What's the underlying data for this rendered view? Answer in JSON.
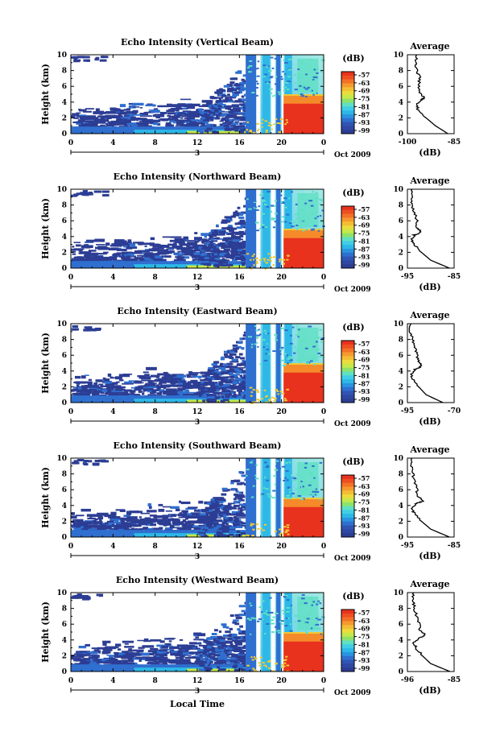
{
  "chart_data": {
    "type": "heatmap",
    "shared": {
      "xlabel": "Local Time",
      "ylabel": "Height (km)",
      "xticks": [
        "0",
        "4",
        "8",
        "12",
        "16",
        "20",
        "0"
      ],
      "xlim": [
        0,
        24
      ],
      "date_marker": "3",
      "date_label": "Oct 2009",
      "yticks": [
        "0",
        "2",
        "4",
        "6",
        "8",
        "10"
      ],
      "ylim": [
        0,
        10
      ],
      "colorbar_unit": "(dB)",
      "colorbar_ticks": [
        "-57",
        "-63",
        "-69",
        "-75",
        "-81",
        "-87",
        "-93",
        "-99"
      ],
      "colorbar_colors": [
        "#e8321e",
        "#f58a2a",
        "#f2c934",
        "#c6e84a",
        "#5fe0c3",
        "#2db8e8",
        "#2f6fcf",
        "#2c3d94"
      ],
      "profile_title": "Average",
      "profile_xlabel": "(dB)"
    },
    "panels": [
      {
        "title": "Echo Intensity (Vertical Beam)",
        "profile_xticks": [
          "-100",
          "-85"
        ],
        "profile_xlim": [
          -100,
          -85
        ],
        "profile": [
          [
            0,
            -87
          ],
          [
            1,
            -91
          ],
          [
            2,
            -94
          ],
          [
            3,
            -96.5
          ],
          [
            3.6,
            -97
          ],
          [
            4.2,
            -96
          ],
          [
            4.6,
            -94.5
          ],
          [
            5.2,
            -96
          ],
          [
            6,
            -96.5
          ],
          [
            7,
            -96
          ],
          [
            8,
            -97
          ],
          [
            9,
            -97.5
          ],
          [
            10,
            -97
          ]
        ]
      },
      {
        "title": "Echo Intensity (Northward Beam)",
        "profile_xticks": [
          "-95",
          "-85"
        ],
        "profile_xlim": [
          -95,
          -85
        ],
        "profile": [
          [
            0,
            -86
          ],
          [
            1,
            -90
          ],
          [
            2,
            -92
          ],
          [
            3,
            -93.5
          ],
          [
            3.6,
            -94
          ],
          [
            4.2,
            -93.5
          ],
          [
            4.6,
            -92
          ],
          [
            5.2,
            -93
          ],
          [
            6,
            -93
          ],
          [
            7,
            -93.5
          ],
          [
            8,
            -94
          ],
          [
            9,
            -94.2
          ],
          [
            10,
            -94
          ]
        ]
      },
      {
        "title": "Echo Intensity (Eastward Beam)",
        "profile_xticks": [
          "-95",
          "-70"
        ],
        "profile_xlim": [
          -95,
          -70
        ],
        "profile": [
          [
            0,
            -76
          ],
          [
            1,
            -85
          ],
          [
            2,
            -89
          ],
          [
            3,
            -92
          ],
          [
            3.6,
            -93
          ],
          [
            4.2,
            -91
          ],
          [
            4.6,
            -87.5
          ],
          [
            5.2,
            -89
          ],
          [
            6,
            -90
          ],
          [
            7,
            -91
          ],
          [
            8,
            -92
          ],
          [
            9,
            -93.5
          ],
          [
            10,
            -93
          ]
        ]
      },
      {
        "title": "Echo Intensity (Southward Beam)",
        "profile_xticks": [
          "-95",
          "-85"
        ],
        "profile_xlim": [
          -95,
          -85
        ],
        "profile": [
          [
            0,
            -86
          ],
          [
            1,
            -90
          ],
          [
            2,
            -92
          ],
          [
            3,
            -93.5
          ],
          [
            3.6,
            -94
          ],
          [
            4.2,
            -93.3
          ],
          [
            4.6,
            -91.5
          ],
          [
            5.2,
            -92.8
          ],
          [
            6,
            -93
          ],
          [
            7,
            -93.5
          ],
          [
            8,
            -93.8
          ],
          [
            9,
            -94.2
          ],
          [
            10,
            -94
          ]
        ]
      },
      {
        "title": "Echo Intensity (Westward Beam)",
        "profile_xticks": [
          "-96",
          "-85"
        ],
        "profile_xlim": [
          -96,
          -85
        ],
        "profile": [
          [
            0,
            -86
          ],
          [
            1,
            -90.5
          ],
          [
            2,
            -92.5
          ],
          [
            3,
            -94
          ],
          [
            3.6,
            -94.5
          ],
          [
            4.2,
            -93.5
          ],
          [
            4.6,
            -91.8
          ],
          [
            5.2,
            -93
          ],
          [
            6,
            -93.3
          ],
          [
            7,
            -93.8
          ],
          [
            8,
            -94.3
          ],
          [
            9,
            -94.8
          ],
          [
            10,
            -94.5
          ]
        ]
      }
    ]
  }
}
